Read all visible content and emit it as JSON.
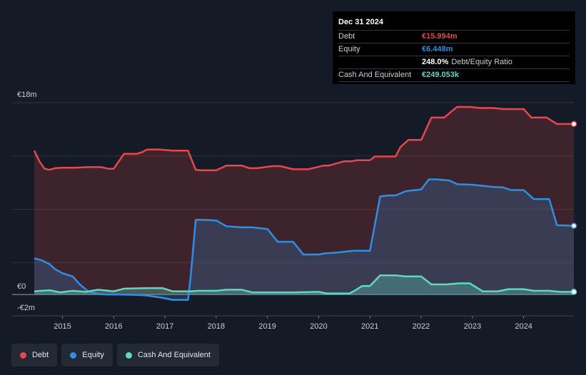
{
  "tooltip": {
    "date": "Dec 31 2024",
    "debt_label": "Debt",
    "debt_value": "€15.994m",
    "equity_label": "Equity",
    "equity_value": "€6.448m",
    "ratio_value": "248.0%",
    "ratio_label": "Debt/Equity Ratio",
    "cash_label": "Cash And Equivalent",
    "cash_value": "€249.053k"
  },
  "legend": [
    {
      "label": "Debt",
      "color": "#e5484d"
    },
    {
      "label": "Equity",
      "color": "#2e90e5"
    },
    {
      "label": "Cash And Equivalent",
      "color": "#5fd9c0"
    }
  ],
  "chart_data": {
    "type": "area",
    "y_tick_labels": [
      {
        "value": 18,
        "label": "€18m"
      },
      {
        "value": 0,
        "label": "€0"
      },
      {
        "value": -2,
        "label": "-€2m"
      }
    ],
    "ylim": [
      -2,
      18
    ],
    "xlim": [
      2014.45,
      2024.98
    ],
    "x_ticks": [
      2015,
      2016,
      2017,
      2018,
      2019,
      2020,
      2021,
      2022,
      2023,
      2024
    ],
    "gridlines": [
      18,
      13,
      8,
      3
    ],
    "grid": true,
    "series": [
      {
        "name": "Debt",
        "color": "#e5484d",
        "x": [
          2014.45,
          2014.55,
          2014.65,
          2014.75,
          2014.85,
          2015.0,
          2015.25,
          2015.5,
          2015.75,
          2015.9,
          2016.0,
          2016.1,
          2016.2,
          2016.45,
          2016.55,
          2016.65,
          2016.9,
          2017.15,
          2017.45,
          2017.6,
          2017.7,
          2018.0,
          2018.2,
          2018.5,
          2018.65,
          2018.8,
          2019.1,
          2019.25,
          2019.5,
          2019.7,
          2019.8,
          2020.1,
          2020.2,
          2020.5,
          2020.65,
          2020.75,
          2021.0,
          2021.1,
          2021.5,
          2021.6,
          2021.75,
          2022.0,
          2022.05,
          2022.2,
          2022.45,
          2022.55,
          2022.7,
          2022.95,
          2023.15,
          2023.4,
          2023.6,
          2023.7,
          2024.0,
          2024.15,
          2024.45,
          2024.65,
          2024.98
        ],
        "values": [
          13.5,
          12.5,
          11.8,
          11.7,
          11.85,
          11.9,
          11.9,
          11.95,
          11.95,
          11.8,
          11.8,
          12.5,
          13.2,
          13.2,
          13.35,
          13.6,
          13.6,
          13.5,
          13.5,
          11.7,
          11.65,
          11.65,
          12.1,
          12.1,
          11.85,
          11.85,
          12.05,
          12.05,
          11.75,
          11.75,
          11.75,
          12.1,
          12.1,
          12.5,
          12.5,
          12.6,
          12.6,
          12.95,
          12.95,
          13.85,
          14.5,
          14.5,
          15.0,
          16.6,
          16.6,
          17.0,
          17.6,
          17.6,
          17.5,
          17.5,
          17.4,
          17.4,
          17.4,
          16.6,
          16.6,
          16.0,
          16.0
        ]
      },
      {
        "name": "Equity",
        "color": "#2e90e5",
        "x": [
          2014.45,
          2014.6,
          2014.75,
          2014.85,
          2015.0,
          2015.2,
          2015.35,
          2015.5,
          2015.7,
          2015.85,
          2016.1,
          2016.5,
          2016.65,
          2016.95,
          2017.15,
          2017.45,
          2017.5,
          2017.6,
          2017.75,
          2018.0,
          2018.2,
          2018.5,
          2018.7,
          2019.0,
          2019.2,
          2019.5,
          2019.7,
          2020.0,
          2020.1,
          2020.4,
          2020.55,
          2020.7,
          2021.0,
          2021.2,
          2021.35,
          2021.5,
          2021.7,
          2022.0,
          2022.15,
          2022.3,
          2022.55,
          2022.7,
          2023.0,
          2023.1,
          2023.4,
          2023.6,
          2023.75,
          2024.0,
          2024.2,
          2024.5,
          2024.65,
          2024.98
        ],
        "values": [
          3.4,
          3.2,
          2.85,
          2.4,
          2.0,
          1.7,
          0.9,
          0.3,
          0.05,
          0.0,
          0.0,
          -0.05,
          -0.1,
          -0.3,
          -0.5,
          -0.5,
          1.6,
          7.0,
          7.0,
          6.95,
          6.4,
          6.3,
          6.3,
          6.15,
          4.95,
          4.95,
          3.75,
          3.75,
          3.85,
          3.95,
          4.05,
          4.1,
          4.1,
          9.2,
          9.3,
          9.3,
          9.7,
          9.85,
          10.8,
          10.8,
          10.7,
          10.35,
          10.3,
          10.25,
          10.1,
          10.05,
          9.8,
          9.8,
          8.95,
          8.95,
          6.5,
          6.448
        ]
      },
      {
        "name": "Cash And Equivalent",
        "color": "#5fd9c0",
        "x": [
          2014.45,
          2014.75,
          2014.95,
          2015.2,
          2015.45,
          2015.7,
          2016.0,
          2016.2,
          2016.65,
          2016.95,
          2017.15,
          2017.5,
          2017.65,
          2018.0,
          2018.2,
          2018.5,
          2018.7,
          2019.0,
          2019.5,
          2020.0,
          2020.15,
          2020.6,
          2020.7,
          2020.85,
          2021.0,
          2021.2,
          2021.5,
          2021.7,
          2022.0,
          2022.2,
          2022.5,
          2022.75,
          2022.95,
          2023.2,
          2023.5,
          2023.7,
          2024.0,
          2024.2,
          2024.5,
          2024.7,
          2024.98
        ],
        "values": [
          0.3,
          0.4,
          0.2,
          0.35,
          0.25,
          0.45,
          0.3,
          0.55,
          0.6,
          0.6,
          0.3,
          0.3,
          0.35,
          0.35,
          0.45,
          0.45,
          0.2,
          0.2,
          0.2,
          0.25,
          0.1,
          0.1,
          0.35,
          0.8,
          0.8,
          1.8,
          1.8,
          1.7,
          1.7,
          0.95,
          0.95,
          1.05,
          1.05,
          0.3,
          0.3,
          0.5,
          0.5,
          0.35,
          0.35,
          0.25,
          0.249
        ]
      }
    ]
  }
}
